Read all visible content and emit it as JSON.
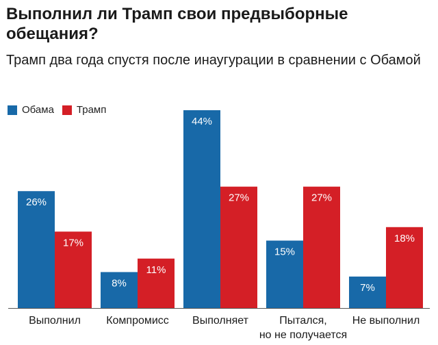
{
  "header": {
    "title": "Выполнил ли Трамп свои предвыборные обещания?",
    "subtitle": "Трамп два года спустя после инаугурации в сравнении с Обамой"
  },
  "colors": {
    "obama": "#1869a8",
    "trump": "#d41f26",
    "baseline": "#555555"
  },
  "chart_data": {
    "type": "bar",
    "title": "Выполнил ли Трамп свои предвыборные обещания?",
    "subtitle": "Трамп два года спустя после инаугурации в сравнении с Обамой",
    "xlabel": "",
    "ylabel": "",
    "unit": "%",
    "ylim": [
      0,
      44
    ],
    "grid": false,
    "legend_position": "top-left",
    "categories": [
      [
        "Выполнил"
      ],
      [
        "Компромисс"
      ],
      [
        "Выполняет"
      ],
      [
        "Пытался,",
        "но не получается"
      ],
      [
        "Не выполнил"
      ]
    ],
    "series": [
      {
        "name": "Обама",
        "color": "#1869a8",
        "values": [
          26,
          8,
          44,
          15,
          7
        ],
        "labels": [
          "26%",
          "8%",
          "44%",
          "15%",
          "7%"
        ]
      },
      {
        "name": "Трамп",
        "color": "#d41f26",
        "values": [
          17,
          11,
          27,
          27,
          18
        ],
        "labels": [
          "17%",
          "11%",
          "27%",
          "27%",
          "18%"
        ]
      }
    ]
  }
}
